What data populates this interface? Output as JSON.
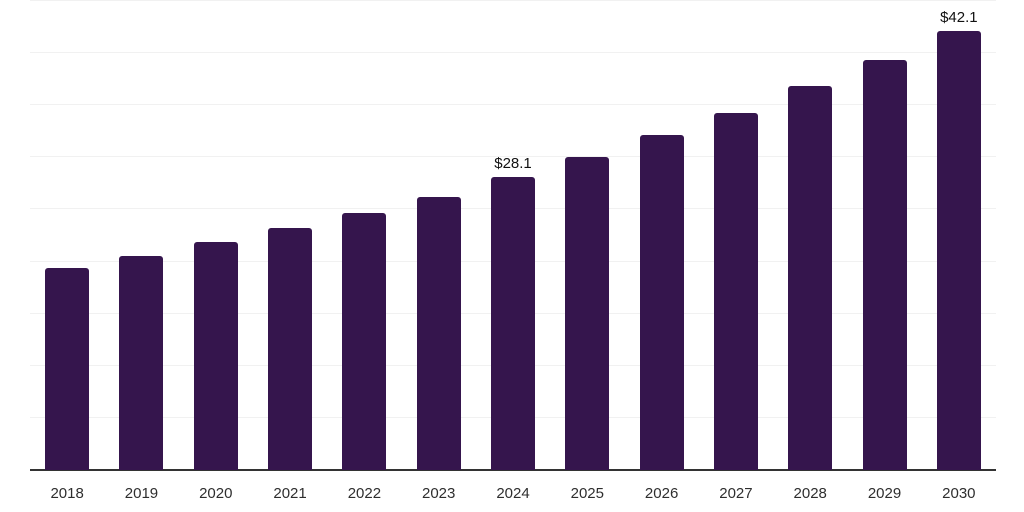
{
  "chart_data": {
    "type": "bar",
    "title": "",
    "xlabel": "",
    "ylabel": "",
    "categories": [
      "2018",
      "2019",
      "2020",
      "2021",
      "2022",
      "2023",
      "2024",
      "2025",
      "2026",
      "2027",
      "2028",
      "2029",
      "2030"
    ],
    "values": [
      19.4,
      20.5,
      21.9,
      23.2,
      24.7,
      26.2,
      28.1,
      30.0,
      32.1,
      34.3,
      36.8,
      39.3,
      42.1
    ],
    "annotations": [
      {
        "category": "2024",
        "text": "$28.1"
      },
      {
        "category": "2030",
        "text": "$42.1"
      }
    ],
    "ylim": [
      0,
      45
    ],
    "grid_step": 5,
    "grid": true,
    "legend": false,
    "y_tick_labels_shown": false,
    "colors": {
      "bar": "#35154d",
      "gridline": "#f1f1f1",
      "axis_line": "#333333",
      "tick_label": "#2e2e2e",
      "annotation": "#111111",
      "background": "#ffffff"
    }
  }
}
